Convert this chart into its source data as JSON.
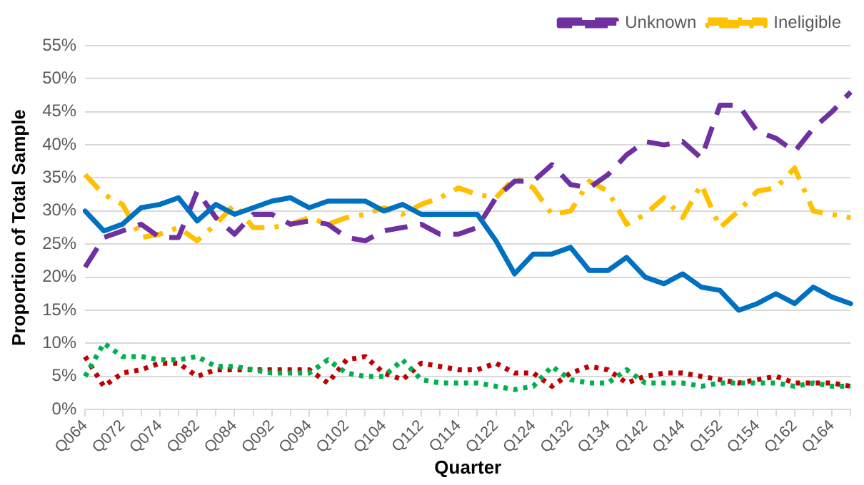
{
  "chart_data": {
    "type": "line",
    "xlabel": "Quarter",
    "ylabel": "Proportion of Total Sample",
    "categories": [
      "Q064",
      null,
      "Q072",
      null,
      "Q074",
      null,
      "Q082",
      null,
      "Q084",
      null,
      "Q092",
      null,
      "Q094",
      null,
      "Q102",
      null,
      "Q104",
      null,
      "Q112",
      null,
      "Q114",
      null,
      "Q122",
      null,
      "Q124",
      null,
      "Q132",
      null,
      "Q134",
      null,
      "Q142",
      null,
      "Q144",
      null,
      "Q152",
      null,
      "Q154",
      null,
      "Q162",
      null,
      "Q164",
      null
    ],
    "series": [
      {
        "color": "#0070c0",
        "line_style": "solid",
        "values": [
          30,
          27,
          28,
          30.5,
          31,
          32,
          28.5,
          31,
          29.5,
          30.5,
          31.5,
          32,
          30.5,
          31.5,
          31.5,
          31.5,
          30,
          31,
          29.5,
          29.5,
          29.5,
          29.5,
          25.5,
          20.5,
          23.5,
          23.5,
          24.5,
          21,
          21,
          23,
          20,
          19,
          20.5,
          18.5,
          18,
          15,
          16,
          17.5,
          16,
          18.5,
          17,
          16
        ]
      },
      {
        "name": "Unknown",
        "color": "#7030a0",
        "line_style": "dashed",
        "values": [
          21.5,
          26,
          27,
          28,
          26,
          26,
          33,
          29,
          26.5,
          29.5,
          29.5,
          28,
          28.5,
          28,
          26,
          25.5,
          27,
          27.5,
          28,
          26.5,
          26.5,
          27.5,
          32,
          34.5,
          34.5,
          37,
          34,
          33.5,
          35.5,
          38.5,
          40.5,
          40,
          40.5,
          38,
          46,
          46,
          42,
          41,
          39,
          42.5,
          45,
          48
        ]
      },
      {
        "name": "Ineligible",
        "color": "#ffc000",
        "line_style": "dashdot",
        "values": [
          35.5,
          32.5,
          31,
          26,
          26.5,
          27.5,
          25.5,
          28,
          31,
          27.5,
          27.5,
          28,
          29,
          28,
          29,
          29.5,
          30.5,
          29.5,
          31,
          32,
          33.5,
          32.5,
          32,
          35,
          33.5,
          29.5,
          30,
          34.5,
          33,
          28,
          29.5,
          32,
          29,
          34,
          27.5,
          30,
          33,
          33.5,
          36.5,
          30,
          29.5,
          29
        ]
      },
      {
        "color": "#00b050",
        "line_style": "dotted",
        "values": [
          5,
          10,
          8,
          8,
          7.5,
          7.5,
          8,
          6.5,
          6.5,
          6,
          5.5,
          5.5,
          5.5,
          7.5,
          5.5,
          5,
          5,
          7.5,
          4.5,
          4,
          4,
          4,
          3.5,
          3,
          3.5,
          6.5,
          4.5,
          4,
          4,
          6,
          4,
          4,
          4,
          3.5,
          4,
          4,
          4,
          4,
          3.5,
          4,
          3.5,
          3.5
        ]
      },
      {
        "color": "#c00000",
        "line_style": "dotted",
        "values": [
          8,
          3.5,
          5.5,
          6,
          7,
          7,
          5,
          6,
          6,
          6,
          6,
          6,
          6,
          4,
          7.5,
          8,
          5.5,
          4.5,
          7,
          6.5,
          6,
          6,
          7,
          5.5,
          5.5,
          3.5,
          5.5,
          6.5,
          6,
          4,
          5,
          5.5,
          5.5,
          5,
          4.5,
          4,
          4.5,
          5,
          4,
          4,
          4,
          3.5
        ]
      }
    ],
    "ylim": [
      0,
      55
    ],
    "yticks": [
      {
        "value": 0,
        "label": "0%"
      },
      {
        "value": 5,
        "label": "5%"
      },
      {
        "value": 10,
        "label": "10%"
      },
      {
        "value": 15,
        "label": "15%"
      },
      {
        "value": 20,
        "label": "20%"
      },
      {
        "value": 25,
        "label": "25%"
      },
      {
        "value": 30,
        "label": "30%"
      },
      {
        "value": 35,
        "label": "35%"
      },
      {
        "value": 40,
        "label": "40%"
      },
      {
        "value": 45,
        "label": "45%"
      },
      {
        "value": 50,
        "label": "50%"
      },
      {
        "value": 55,
        "label": "55%"
      }
    ],
    "grid": "y",
    "legend": "top right",
    "marker": "none"
  }
}
